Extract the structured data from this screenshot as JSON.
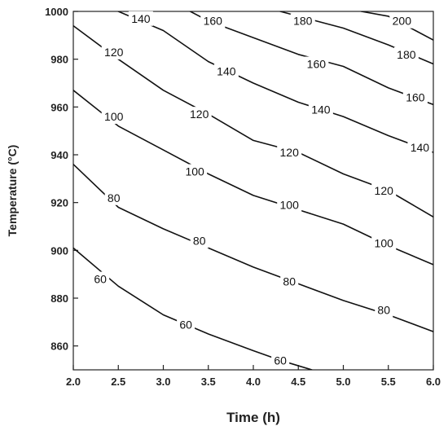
{
  "chart_data": {
    "type": "contour",
    "xlabel": "Time (h)",
    "ylabel": "Temperature (°C)",
    "xlim": [
      2.0,
      6.0
    ],
    "ylim": [
      850,
      1000
    ],
    "x_ticks": [
      2.0,
      2.5,
      3.0,
      3.5,
      4.0,
      4.5,
      5.0,
      5.5,
      6.0
    ],
    "x_tick_labels": [
      "2.0",
      "2.5",
      "3.0",
      "3.5",
      "4.0",
      "4.5",
      "5.0",
      "5.5",
      "6.0"
    ],
    "y_ticks": [
      860,
      880,
      900,
      920,
      940,
      960,
      980,
      1000
    ],
    "y_tick_labels": [
      "860",
      "880",
      "900",
      "920",
      "940",
      "960",
      "980",
      "1000"
    ],
    "grid": false,
    "contours": [
      {
        "level": "60",
        "points": [
          [
            2.0,
            901
          ],
          [
            2.5,
            885
          ],
          [
            3.0,
            873
          ],
          [
            3.5,
            865
          ],
          [
            4.0,
            858
          ],
          [
            4.3,
            854
          ],
          [
            4.65,
            850
          ]
        ],
        "labels": [
          {
            "text": "60",
            "x": 2.3,
            "y": 888
          },
          {
            "text": "60",
            "x": 3.25,
            "y": 869
          },
          {
            "text": "60",
            "x": 4.3,
            "y": 854
          }
        ]
      },
      {
        "level": "80",
        "points": [
          [
            2.0,
            936
          ],
          [
            2.5,
            918
          ],
          [
            3.0,
            909
          ],
          [
            3.5,
            901
          ],
          [
            4.0,
            893
          ],
          [
            4.5,
            886
          ],
          [
            5.0,
            879
          ],
          [
            5.5,
            873
          ],
          [
            6.0,
            866
          ]
        ],
        "labels": [
          {
            "text": "80",
            "x": 2.45,
            "y": 922
          },
          {
            "text": "80",
            "x": 3.4,
            "y": 904
          },
          {
            "text": "80",
            "x": 4.4,
            "y": 887
          },
          {
            "text": "80",
            "x": 5.45,
            "y": 875
          }
        ]
      },
      {
        "level": "100",
        "points": [
          [
            2.0,
            967
          ],
          [
            2.5,
            952
          ],
          [
            3.0,
            942
          ],
          [
            3.5,
            932
          ],
          [
            4.0,
            923
          ],
          [
            4.5,
            917
          ],
          [
            5.0,
            911
          ],
          [
            5.5,
            902
          ],
          [
            6.0,
            894
          ]
        ],
        "labels": [
          {
            "text": "100",
            "x": 2.45,
            "y": 956
          },
          {
            "text": "100",
            "x": 3.35,
            "y": 933
          },
          {
            "text": "100",
            "x": 4.4,
            "y": 919
          },
          {
            "text": "100",
            "x": 5.45,
            "y": 903
          }
        ]
      },
      {
        "level": "120",
        "points": [
          [
            2.0,
            994
          ],
          [
            2.5,
            980
          ],
          [
            3.0,
            967
          ],
          [
            3.5,
            957
          ],
          [
            4.0,
            946
          ],
          [
            4.5,
            941
          ],
          [
            5.0,
            932
          ],
          [
            5.5,
            925
          ],
          [
            6.0,
            914
          ]
        ],
        "labels": [
          {
            "text": "120",
            "x": 2.45,
            "y": 983
          },
          {
            "text": "120",
            "x": 3.4,
            "y": 957
          },
          {
            "text": "120",
            "x": 4.4,
            "y": 941
          },
          {
            "text": "120",
            "x": 5.45,
            "y": 925
          }
        ]
      },
      {
        "level": "140",
        "points": [
          [
            2.5,
            1000
          ],
          [
            3.0,
            992
          ],
          [
            3.5,
            979
          ],
          [
            4.0,
            970
          ],
          [
            4.5,
            962
          ],
          [
            5.0,
            956
          ],
          [
            5.5,
            948
          ],
          [
            6.0,
            941
          ]
        ],
        "labels": [
          {
            "text": "140",
            "x": 2.75,
            "y": 997
          },
          {
            "text": "140",
            "x": 3.7,
            "y": 975
          },
          {
            "text": "140",
            "x": 4.75,
            "y": 959
          },
          {
            "text": "140",
            "x": 5.85,
            "y": 943
          }
        ]
      },
      {
        "level": "160",
        "points": [
          [
            3.3,
            1000
          ],
          [
            3.5,
            996
          ],
          [
            4.0,
            989
          ],
          [
            4.5,
            982
          ],
          [
            5.0,
            977
          ],
          [
            5.5,
            968
          ],
          [
            6.0,
            961
          ]
        ],
        "labels": [
          {
            "text": "160",
            "x": 3.55,
            "y": 996
          },
          {
            "text": "160",
            "x": 4.7,
            "y": 978
          },
          {
            "text": "160",
            "x": 5.8,
            "y": 964
          }
        ]
      },
      {
        "level": "180",
        "points": [
          [
            4.3,
            1000
          ],
          [
            4.5,
            998
          ],
          [
            5.0,
            993
          ],
          [
            5.5,
            986
          ],
          [
            6.0,
            978
          ]
        ],
        "labels": [
          {
            "text": "180",
            "x": 4.55,
            "y": 996
          },
          {
            "text": "180",
            "x": 5.7,
            "y": 982
          }
        ]
      },
      {
        "level": "200",
        "points": [
          [
            5.2,
            1000
          ],
          [
            5.5,
            998
          ],
          [
            6.0,
            988
          ]
        ],
        "labels": [
          {
            "text": "200",
            "x": 5.65,
            "y": 996
          }
        ]
      }
    ]
  }
}
